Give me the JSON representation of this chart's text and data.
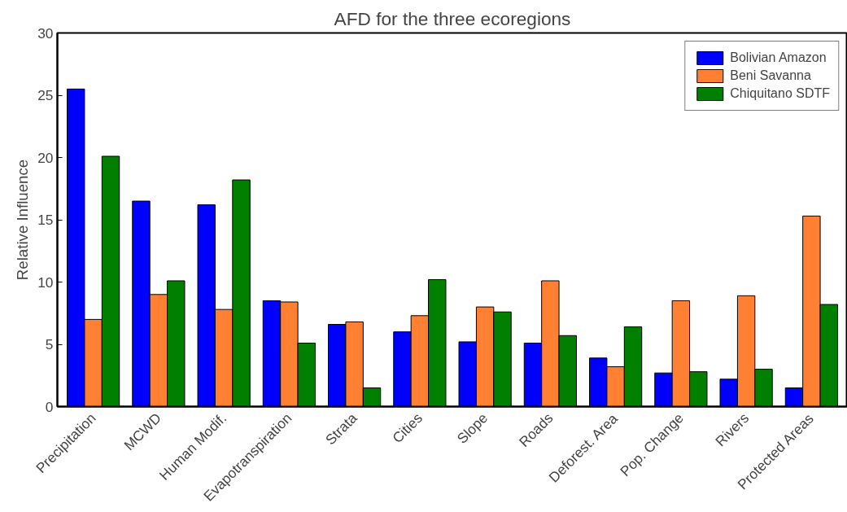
{
  "chart_data": {
    "type": "bar",
    "title": "AFD for the three ecoregions",
    "ylabel": "Relative Influence",
    "categories": [
      "Precipitation",
      "MCWD",
      "Human Modif.",
      "Evapotranspiration",
      "Strata",
      "Cities",
      "Slope",
      "Roads",
      "Deforest. Area",
      "Pop. Change",
      "Rivers",
      "Protected Areas"
    ],
    "series": [
      {
        "name": "Bolivian Amazon",
        "color": "#0000ff",
        "values": [
          25.5,
          16.5,
          16.2,
          8.5,
          6.6,
          6.0,
          5.2,
          5.1,
          3.9,
          2.7,
          2.2,
          1.5
        ]
      },
      {
        "name": "Beni Savanna",
        "color": "#ff7f33",
        "values": [
          7.0,
          9.0,
          7.8,
          8.4,
          6.8,
          7.3,
          8.0,
          10.1,
          3.2,
          8.5,
          8.9,
          15.3
        ]
      },
      {
        "name": "Chiquitano SDTF",
        "color": "#007f00",
        "values": [
          20.1,
          10.1,
          18.2,
          5.1,
          1.5,
          10.2,
          7.6,
          5.7,
          6.4,
          2.8,
          3.0,
          8.2
        ]
      }
    ],
    "ylim": [
      0,
      30
    ],
    "yticks": [
      0,
      5,
      10,
      15,
      20,
      25,
      30
    ],
    "grid": false,
    "legend": "top right"
  }
}
